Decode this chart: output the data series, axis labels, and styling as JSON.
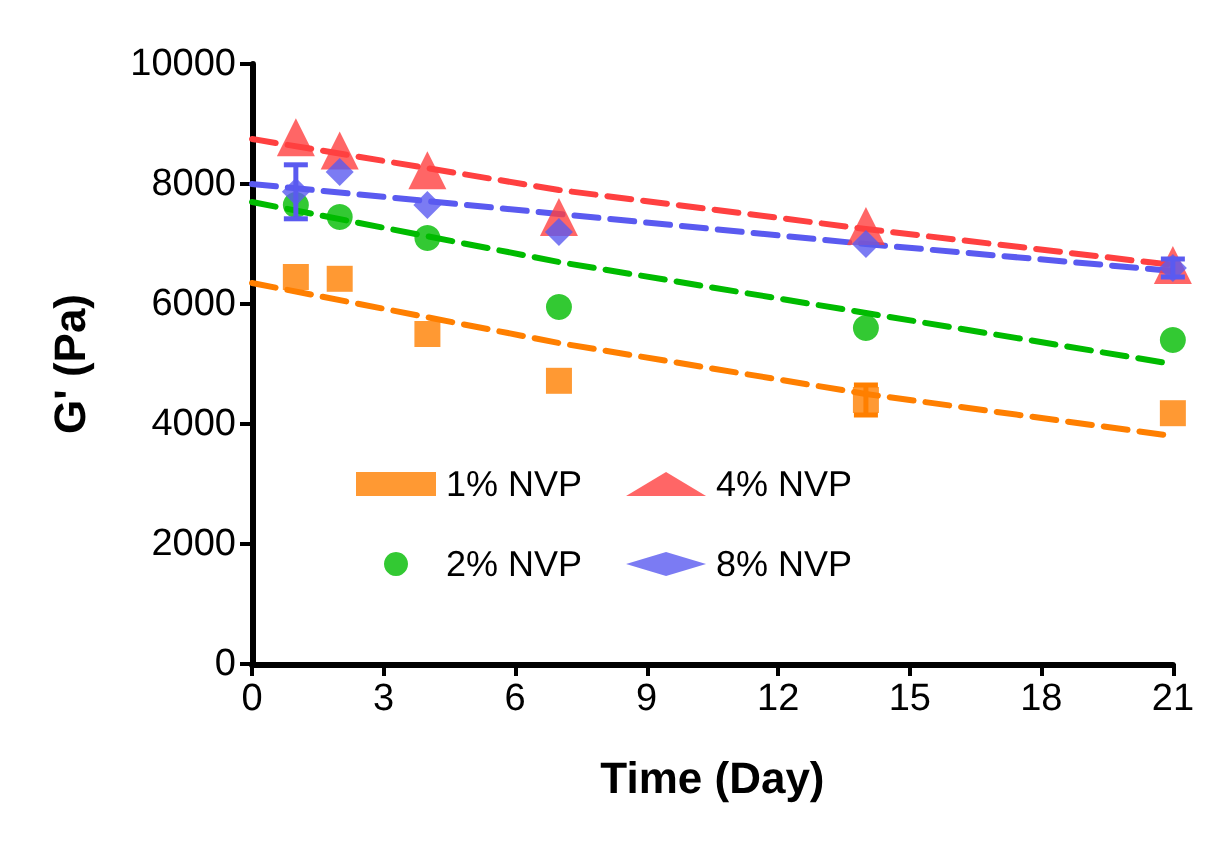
{
  "chart_data": {
    "type": "scatter",
    "xlabel": "Time (Day)",
    "ylabel": "G' (Pa)",
    "xlim": [
      0,
      21
    ],
    "xticks": [
      0,
      3,
      6,
      9,
      12,
      15,
      18,
      21
    ],
    "ylim": [
      0,
      10000
    ],
    "yticks": [
      0,
      2000,
      4000,
      6000,
      8000,
      10000
    ],
    "grid": false,
    "legend": "bottom",
    "line_style": "dashed",
    "series": [
      {
        "name": "1% NVP",
        "color": "#ff7f00",
        "marker": "square",
        "x": [
          1,
          2,
          4,
          7,
          14,
          21
        ],
        "values": [
          6450,
          6420,
          5500,
          4720,
          4400,
          4180
        ],
        "errors": [
          null,
          null,
          null,
          null,
          250,
          null
        ]
      },
      {
        "name": "2% NVP",
        "color": "#00bb00",
        "marker": "circle",
        "x": [
          1,
          2,
          4,
          7,
          14,
          21
        ],
        "values": [
          7650,
          7450,
          7100,
          5950,
          5600,
          5400
        ]
      },
      {
        "name": "4% NVP",
        "color": "#ff4040",
        "marker": "triangle",
        "x": [
          1,
          2,
          4,
          7,
          14,
          21
        ],
        "values": [
          8780,
          8560,
          8230,
          7450,
          7300,
          6650
        ]
      },
      {
        "name": "8% NVP",
        "color": "#5a5af0",
        "marker": "diamond",
        "x": [
          1,
          2,
          4,
          7,
          14,
          21
        ],
        "values": [
          7870,
          8200,
          7650,
          7200,
          7000,
          6600
        ],
        "errors": [
          450,
          null,
          null,
          null,
          null,
          150
        ]
      },
      {
        "type": "line",
        "color": "#ff7f00",
        "marker": "none",
        "x": [
          0,
          7,
          14,
          21
        ],
        "values": [
          6350,
          5350,
          4500,
          3800
        ]
      },
      {
        "type": "line",
        "color": "#00bb00",
        "marker": "none",
        "x": [
          0,
          7,
          14,
          21
        ],
        "values": [
          7700,
          6700,
          5850,
          5000
        ]
      },
      {
        "type": "line",
        "color": "#ff4040",
        "marker": "none",
        "x": [
          0,
          7,
          14,
          21
        ],
        "values": [
          8750,
          7900,
          7250,
          6650
        ]
      },
      {
        "type": "line",
        "color": "#5a5af0",
        "marker": "none",
        "x": [
          0,
          7,
          14,
          21
        ],
        "values": [
          8000,
          7500,
          7000,
          6550
        ]
      }
    ]
  }
}
